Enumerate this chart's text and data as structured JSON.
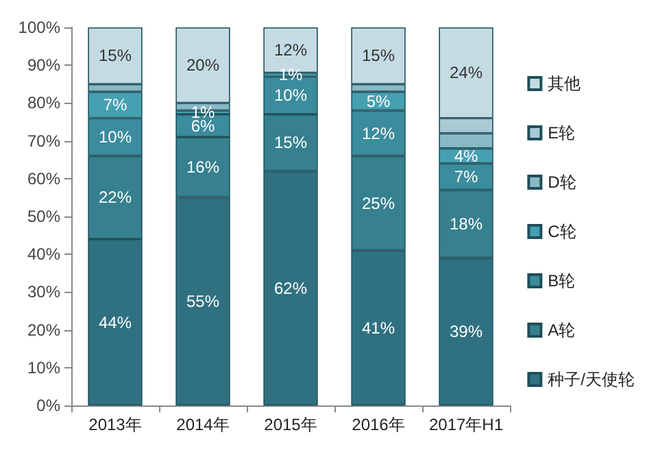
{
  "chart_data": {
    "type": "bar",
    "stacked": true,
    "categories": [
      "2013年",
      "2014年",
      "2015年",
      "2016年",
      "2017年H1"
    ],
    "series": [
      {
        "name": "种子/天使轮",
        "color": "#2f7180",
        "values": [
          44,
          55,
          62,
          41,
          39
        ],
        "value_labels": [
          "44%",
          "55%",
          "62%",
          "41%",
          "39%"
        ]
      },
      {
        "name": "A轮",
        "color": "#36808f",
        "values": [
          22,
          16,
          15,
          25,
          18
        ],
        "value_labels": [
          "22%",
          "16%",
          "15%",
          "25%",
          "18%"
        ]
      },
      {
        "name": "B轮",
        "color": "#3b8c9c",
        "values": [
          10,
          6,
          10,
          12,
          7
        ],
        "value_labels": [
          "10%",
          "6%",
          "10%",
          "12%",
          "7%"
        ]
      },
      {
        "name": "C轮",
        "color": "#45a0b2",
        "values": [
          7,
          1,
          1,
          5,
          4
        ],
        "value_labels": [
          "7%",
          "1%",
          "1%",
          "5%",
          "4%"
        ]
      },
      {
        "name": "D轮",
        "color": "#8ab9c6",
        "values": [
          2,
          2,
          null,
          2,
          4
        ],
        "value_labels": [
          null,
          null,
          null,
          null,
          null
        ]
      },
      {
        "name": "E轮",
        "color": "#a7cad4",
        "values": [
          null,
          null,
          null,
          null,
          4
        ],
        "value_labels": [
          null,
          null,
          null,
          null,
          null
        ]
      },
      {
        "name": "其他",
        "color": "#c5dbe3",
        "values": [
          15,
          20,
          12,
          15,
          24
        ],
        "value_labels": [
          "15%",
          "20%",
          "12%",
          "15%",
          "24%"
        ]
      }
    ],
    "ylim": [
      0,
      100
    ],
    "yticks": [
      {
        "value": 0,
        "label": "0%"
      },
      {
        "value": 10,
        "label": "10%"
      },
      {
        "value": 20,
        "label": "20%"
      },
      {
        "value": 30,
        "label": "30%"
      },
      {
        "value": 40,
        "label": "40%"
      },
      {
        "value": 50,
        "label": "50%"
      },
      {
        "value": 60,
        "label": "60%"
      },
      {
        "value": 70,
        "label": "70%"
      },
      {
        "value": 80,
        "label": "80%"
      },
      {
        "value": 90,
        "label": "90%"
      },
      {
        "value": 100,
        "label": "100%"
      }
    ],
    "grid": false,
    "legend": "right"
  }
}
